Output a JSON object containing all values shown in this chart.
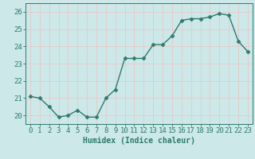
{
  "x": [
    0,
    1,
    2,
    3,
    4,
    5,
    6,
    7,
    8,
    9,
    10,
    11,
    12,
    13,
    14,
    15,
    16,
    17,
    18,
    19,
    20,
    21,
    22,
    23
  ],
  "y": [
    21.1,
    21.0,
    20.5,
    19.9,
    20.0,
    20.3,
    19.9,
    19.9,
    21.0,
    21.5,
    23.3,
    23.3,
    23.3,
    24.1,
    24.1,
    24.6,
    25.5,
    25.6,
    25.6,
    25.7,
    25.9,
    25.8,
    24.3,
    23.7
  ],
  "line_color": "#2d7a6e",
  "marker": "D",
  "markersize": 2.5,
  "bg_color": "#cce8e8",
  "grid_color": "#e8c8c8",
  "xlabel": "Humidex (Indice chaleur)",
  "xlabel_fontsize": 7,
  "tick_fontsize": 6.5,
  "ylim": [
    19.5,
    26.5
  ],
  "xlim": [
    -0.5,
    23.5
  ],
  "yticks": [
    20,
    21,
    22,
    23,
    24,
    25,
    26
  ],
  "xticks": [
    0,
    1,
    2,
    3,
    4,
    5,
    6,
    7,
    8,
    9,
    10,
    11,
    12,
    13,
    14,
    15,
    16,
    17,
    18,
    19,
    20,
    21,
    22,
    23
  ]
}
